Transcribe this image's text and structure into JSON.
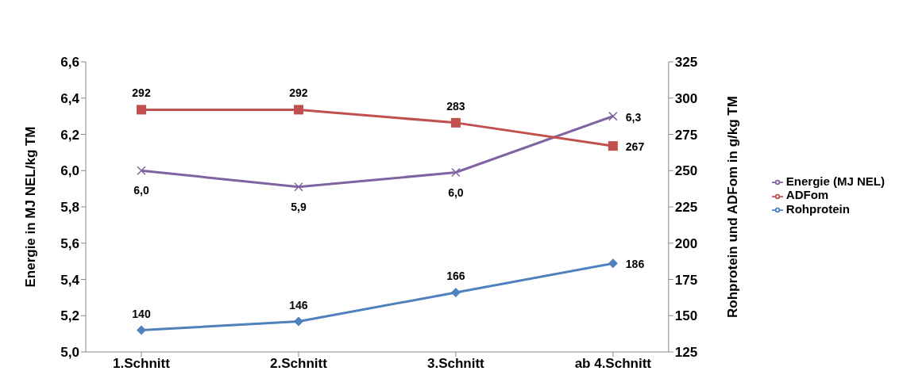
{
  "chart_data": {
    "type": "line",
    "categories": [
      "1.Schnitt",
      "2.Schnitt",
      "3.Schnitt",
      "ab 4.Schnitt"
    ],
    "ylabel": "Energie in MJ NEL/kg TM",
    "y2label": "Rohprotein und ADFom in g/kg TM",
    "ylim": [
      5.0,
      6.6
    ],
    "yticks": [
      {
        "value": 5.0,
        "label": "5,0"
      },
      {
        "value": 5.2,
        "label": "5,2"
      },
      {
        "value": 5.4,
        "label": "5,4"
      },
      {
        "value": 5.6,
        "label": "5,6"
      },
      {
        "value": 5.8,
        "label": "5,8"
      },
      {
        "value": 6.0,
        "label": "6,0"
      },
      {
        "value": 6.2,
        "label": "6,2"
      },
      {
        "value": 6.4,
        "label": "6,4"
      },
      {
        "value": 6.6,
        "label": "6,6"
      }
    ],
    "y2lim": [
      125,
      325
    ],
    "y2ticks": [
      125,
      150,
      175,
      200,
      225,
      250,
      275,
      300,
      325
    ],
    "grid": false,
    "legend": "right",
    "series": [
      {
        "name": "Energie (MJ NEL)",
        "color": "#8064a2",
        "marker": "cross",
        "values": [
          6.0,
          5.91,
          5.99,
          6.3
        ],
        "value_labels": [
          "6,0",
          "5,9",
          "6,0",
          "6,3"
        ]
      },
      {
        "name": "ADFom",
        "color": "#c0504d",
        "marker": "square",
        "axis": "y2",
        "values": [
          292,
          292,
          283,
          267
        ],
        "value_labels": [
          "292",
          "292",
          "283",
          "267"
        ]
      },
      {
        "name": "Rohprotein",
        "color": "#4f81bd",
        "marker": "diamond",
        "axis": "y2",
        "values": [
          140,
          146,
          166,
          186
        ],
        "value_labels": [
          "140",
          "146",
          "166",
          "186"
        ]
      }
    ]
  }
}
